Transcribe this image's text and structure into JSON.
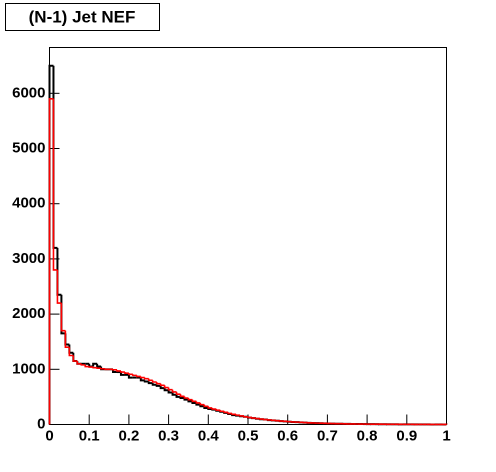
{
  "chart_data": {
    "type": "histogram",
    "title": "(N-1) Jet NEF",
    "bins": [
      0,
      0.01,
      0.02,
      0.03,
      0.04,
      0.05,
      0.06,
      0.07,
      0.08,
      0.09,
      0.1,
      0.11,
      0.12,
      0.13,
      0.14,
      0.15,
      0.16,
      0.17,
      0.18,
      0.19,
      0.2,
      0.21,
      0.22,
      0.23,
      0.24,
      0.25,
      0.26,
      0.27,
      0.28,
      0.29,
      0.3,
      0.31,
      0.32,
      0.33,
      0.34,
      0.35,
      0.36,
      0.37,
      0.38,
      0.39,
      0.4,
      0.41,
      0.42,
      0.43,
      0.44,
      0.45,
      0.46,
      0.47,
      0.48,
      0.49,
      0.5,
      0.51,
      0.52,
      0.53,
      0.54,
      0.55,
      0.56,
      0.57,
      0.58,
      0.59,
      0.6,
      0.61,
      0.62,
      0.63,
      0.64,
      0.65,
      0.66,
      0.67,
      0.68,
      0.69,
      0.7,
      0.71,
      0.72,
      0.73,
      0.74,
      0.75,
      0.76,
      0.77,
      0.78,
      0.79,
      0.8,
      0.81,
      0.82,
      0.83,
      0.84,
      0.85,
      0.86,
      0.87,
      0.88,
      0.89,
      0.9,
      0.91,
      0.92,
      0.93,
      0.94,
      0.95,
      0.96,
      0.97,
      0.98,
      0.99,
      1
    ],
    "series": [
      {
        "color": "#000000",
        "values": [
          6500,
          3200,
          2350,
          1650,
          1450,
          1300,
          1150,
          1100,
          1100,
          1100,
          1050,
          1100,
          1050,
          1000,
          1000,
          1000,
          950,
          950,
          900,
          900,
          850,
          850,
          850,
          800,
          780,
          750,
          720,
          700,
          660,
          620,
          580,
          540,
          500,
          480,
          450,
          420,
          390,
          360,
          330,
          300,
          280,
          270,
          250,
          230,
          210,
          190,
          170,
          160,
          150,
          140,
          125,
          115,
          105,
          95,
          90,
          80,
          75,
          68,
          62,
          56,
          50,
          46,
          42,
          38,
          34,
          30,
          27,
          24,
          22,
          20,
          18,
          16,
          14,
          13,
          12,
          11,
          10,
          9,
          8,
          8,
          7,
          6,
          6,
          5,
          5,
          4,
          4,
          4,
          3,
          3,
          3,
          3,
          2,
          2,
          2,
          2,
          1,
          1,
          1,
          1
        ]
      },
      {
        "color": "#ff0000",
        "values": [
          5900,
          2800,
          2200,
          1700,
          1400,
          1250,
          1150,
          1100,
          1080,
          1050,
          1040,
          1030,
          1020,
          1010,
          1000,
          1000,
          990,
          970,
          950,
          930,
          910,
          890,
          870,
          850,
          830,
          800,
          770,
          740,
          710,
          670,
          630,
          590,
          550,
          510,
          480,
          450,
          420,
          390,
          360,
          330,
          300,
          280,
          260,
          240,
          220,
          200,
          185,
          170,
          155,
          140,
          128,
          117,
          107,
          98,
          90,
          82,
          75,
          69,
          63,
          57,
          52,
          47,
          43,
          39,
          35,
          31,
          28,
          25,
          23,
          21,
          19,
          17,
          15,
          14,
          12,
          11,
          10,
          9,
          8,
          8,
          7,
          6,
          6,
          5,
          5,
          4,
          4,
          4,
          3,
          3,
          3,
          3,
          2,
          2,
          2,
          2,
          1,
          1,
          1,
          1
        ]
      }
    ],
    "xlim": [
      0,
      1
    ],
    "xticks": [
      0,
      0.1,
      0.2,
      0.3,
      0.4,
      0.5,
      0.6,
      0.7,
      0.8,
      0.9,
      1
    ],
    "ylim": [
      0,
      6830
    ],
    "yticks": [
      0,
      1000,
      2000,
      3000,
      4000,
      5000,
      6000
    ]
  }
}
